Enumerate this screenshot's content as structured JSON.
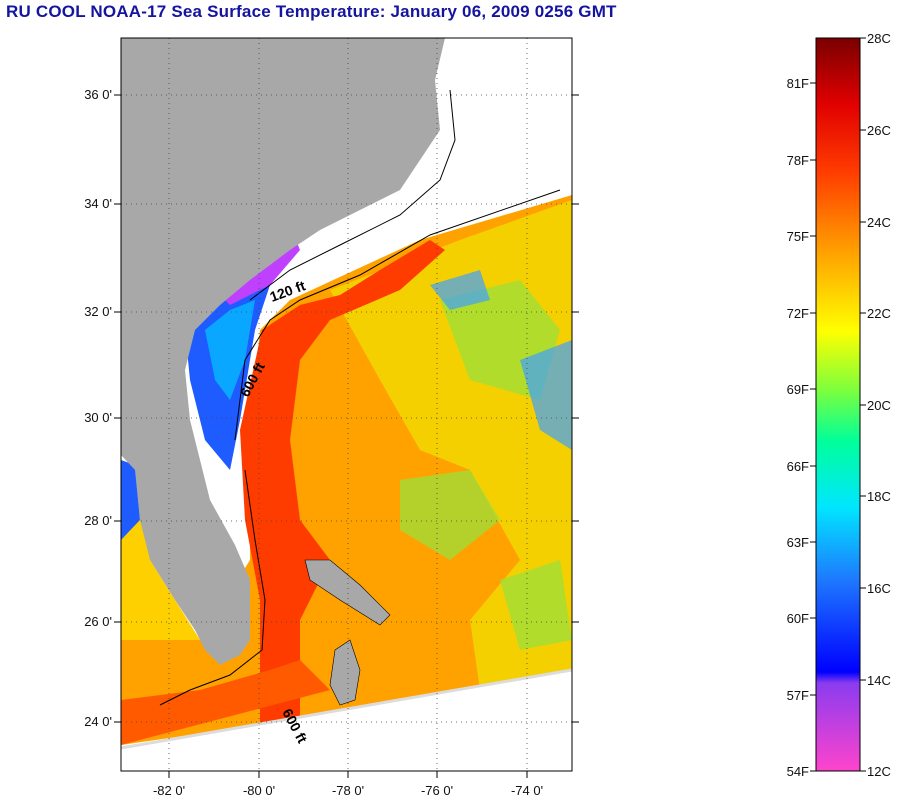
{
  "title": "RU COOL  NOAA-17  Sea Surface Temperature:  January 06, 2009 0256 GMT",
  "map": {
    "lat_ticks": [
      "24 0'",
      "26 0'",
      "28 0'",
      "30 0'",
      "32 0'",
      "34 0'",
      "36 0'"
    ],
    "lon_ticks": [
      "-82 0'",
      "-80 0'",
      "-78 0'",
      "-76 0'",
      "-74 0'"
    ],
    "contours": {
      "c120": "120 ft",
      "c600": "600 ft",
      "c600b": "600 ft"
    }
  },
  "colorbar": {
    "fahrenheit": [
      "54F",
      "57F",
      "60F",
      "63F",
      "66F",
      "69F",
      "72F",
      "75F",
      "78F",
      "81F"
    ],
    "celsius": [
      "12C",
      "14C",
      "16C",
      "18C",
      "20C",
      "22C",
      "24C",
      "26C",
      "28C"
    ]
  },
  "colors": {
    "title": "#1414a0",
    "land": "#a8a8a8",
    "no_data": "#ffffff"
  }
}
